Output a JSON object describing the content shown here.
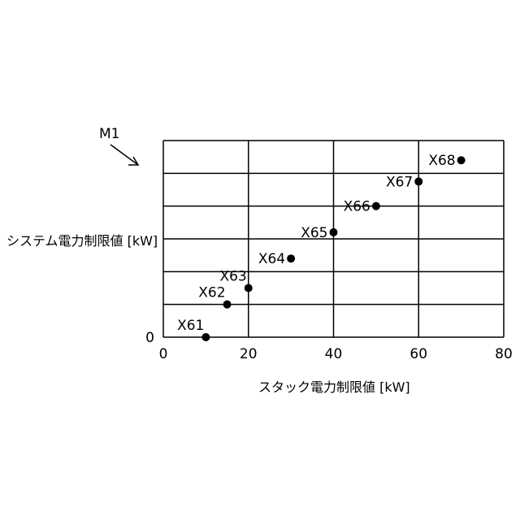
{
  "figure_label": "M1",
  "chart_data": {
    "type": "scatter",
    "title": "",
    "xlabel": "スタック電力制限値 [kW]",
    "ylabel": "システム電力制限値 [kW]",
    "xlim": [
      0,
      80
    ],
    "ylim": [
      0,
      6
    ],
    "x_ticks": [
      "0",
      "20",
      "40",
      "60",
      "80"
    ],
    "y_ticks": [
      "0"
    ],
    "grid": true,
    "y_gridlines": 6,
    "points": [
      {
        "label": "X61",
        "x": 10,
        "y": 0
      },
      {
        "label": "X62",
        "x": 15,
        "y": 1
      },
      {
        "label": "X63",
        "x": 20,
        "y": 1.5
      },
      {
        "label": "X64",
        "x": 30,
        "y": 2.4
      },
      {
        "label": "X65",
        "x": 40,
        "y": 3.2
      },
      {
        "label": "X66",
        "x": 50,
        "y": 4
      },
      {
        "label": "X67",
        "x": 60,
        "y": 4.75
      },
      {
        "label": "X68",
        "x": 70,
        "y": 5.4
      }
    ],
    "color": "#000000"
  }
}
